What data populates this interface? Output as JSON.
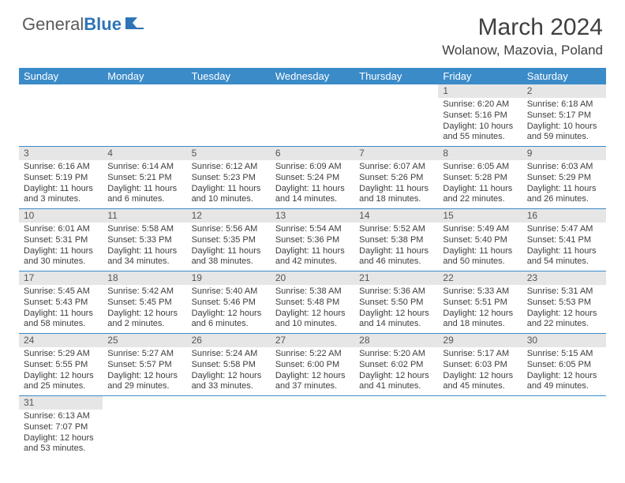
{
  "logo": {
    "general": "General",
    "blue": "Blue"
  },
  "title": "March 2024",
  "location": "Wolanow, Mazovia, Poland",
  "colors": {
    "header_bg": "#3b8bc9",
    "header_text": "#ffffff",
    "daynum_bg": "#e6e6e6",
    "border": "#3b8bc9"
  },
  "day_names": [
    "Sunday",
    "Monday",
    "Tuesday",
    "Wednesday",
    "Thursday",
    "Friday",
    "Saturday"
  ],
  "weeks": [
    [
      {
        "empty": true
      },
      {
        "empty": true
      },
      {
        "empty": true
      },
      {
        "empty": true
      },
      {
        "empty": true
      },
      {
        "num": "1",
        "sunrise": "Sunrise: 6:20 AM",
        "sunset": "Sunset: 5:16 PM",
        "daylight1": "Daylight: 10 hours",
        "daylight2": "and 55 minutes."
      },
      {
        "num": "2",
        "sunrise": "Sunrise: 6:18 AM",
        "sunset": "Sunset: 5:17 PM",
        "daylight1": "Daylight: 10 hours",
        "daylight2": "and 59 minutes."
      }
    ],
    [
      {
        "num": "3",
        "sunrise": "Sunrise: 6:16 AM",
        "sunset": "Sunset: 5:19 PM",
        "daylight1": "Daylight: 11 hours",
        "daylight2": "and 3 minutes."
      },
      {
        "num": "4",
        "sunrise": "Sunrise: 6:14 AM",
        "sunset": "Sunset: 5:21 PM",
        "daylight1": "Daylight: 11 hours",
        "daylight2": "and 6 minutes."
      },
      {
        "num": "5",
        "sunrise": "Sunrise: 6:12 AM",
        "sunset": "Sunset: 5:23 PM",
        "daylight1": "Daylight: 11 hours",
        "daylight2": "and 10 minutes."
      },
      {
        "num": "6",
        "sunrise": "Sunrise: 6:09 AM",
        "sunset": "Sunset: 5:24 PM",
        "daylight1": "Daylight: 11 hours",
        "daylight2": "and 14 minutes."
      },
      {
        "num": "7",
        "sunrise": "Sunrise: 6:07 AM",
        "sunset": "Sunset: 5:26 PM",
        "daylight1": "Daylight: 11 hours",
        "daylight2": "and 18 minutes."
      },
      {
        "num": "8",
        "sunrise": "Sunrise: 6:05 AM",
        "sunset": "Sunset: 5:28 PM",
        "daylight1": "Daylight: 11 hours",
        "daylight2": "and 22 minutes."
      },
      {
        "num": "9",
        "sunrise": "Sunrise: 6:03 AM",
        "sunset": "Sunset: 5:29 PM",
        "daylight1": "Daylight: 11 hours",
        "daylight2": "and 26 minutes."
      }
    ],
    [
      {
        "num": "10",
        "sunrise": "Sunrise: 6:01 AM",
        "sunset": "Sunset: 5:31 PM",
        "daylight1": "Daylight: 11 hours",
        "daylight2": "and 30 minutes."
      },
      {
        "num": "11",
        "sunrise": "Sunrise: 5:58 AM",
        "sunset": "Sunset: 5:33 PM",
        "daylight1": "Daylight: 11 hours",
        "daylight2": "and 34 minutes."
      },
      {
        "num": "12",
        "sunrise": "Sunrise: 5:56 AM",
        "sunset": "Sunset: 5:35 PM",
        "daylight1": "Daylight: 11 hours",
        "daylight2": "and 38 minutes."
      },
      {
        "num": "13",
        "sunrise": "Sunrise: 5:54 AM",
        "sunset": "Sunset: 5:36 PM",
        "daylight1": "Daylight: 11 hours",
        "daylight2": "and 42 minutes."
      },
      {
        "num": "14",
        "sunrise": "Sunrise: 5:52 AM",
        "sunset": "Sunset: 5:38 PM",
        "daylight1": "Daylight: 11 hours",
        "daylight2": "and 46 minutes."
      },
      {
        "num": "15",
        "sunrise": "Sunrise: 5:49 AM",
        "sunset": "Sunset: 5:40 PM",
        "daylight1": "Daylight: 11 hours",
        "daylight2": "and 50 minutes."
      },
      {
        "num": "16",
        "sunrise": "Sunrise: 5:47 AM",
        "sunset": "Sunset: 5:41 PM",
        "daylight1": "Daylight: 11 hours",
        "daylight2": "and 54 minutes."
      }
    ],
    [
      {
        "num": "17",
        "sunrise": "Sunrise: 5:45 AM",
        "sunset": "Sunset: 5:43 PM",
        "daylight1": "Daylight: 11 hours",
        "daylight2": "and 58 minutes."
      },
      {
        "num": "18",
        "sunrise": "Sunrise: 5:42 AM",
        "sunset": "Sunset: 5:45 PM",
        "daylight1": "Daylight: 12 hours",
        "daylight2": "and 2 minutes."
      },
      {
        "num": "19",
        "sunrise": "Sunrise: 5:40 AM",
        "sunset": "Sunset: 5:46 PM",
        "daylight1": "Daylight: 12 hours",
        "daylight2": "and 6 minutes."
      },
      {
        "num": "20",
        "sunrise": "Sunrise: 5:38 AM",
        "sunset": "Sunset: 5:48 PM",
        "daylight1": "Daylight: 12 hours",
        "daylight2": "and 10 minutes."
      },
      {
        "num": "21",
        "sunrise": "Sunrise: 5:36 AM",
        "sunset": "Sunset: 5:50 PM",
        "daylight1": "Daylight: 12 hours",
        "daylight2": "and 14 minutes."
      },
      {
        "num": "22",
        "sunrise": "Sunrise: 5:33 AM",
        "sunset": "Sunset: 5:51 PM",
        "daylight1": "Daylight: 12 hours",
        "daylight2": "and 18 minutes."
      },
      {
        "num": "23",
        "sunrise": "Sunrise: 5:31 AM",
        "sunset": "Sunset: 5:53 PM",
        "daylight1": "Daylight: 12 hours",
        "daylight2": "and 22 minutes."
      }
    ],
    [
      {
        "num": "24",
        "sunrise": "Sunrise: 5:29 AM",
        "sunset": "Sunset: 5:55 PM",
        "daylight1": "Daylight: 12 hours",
        "daylight2": "and 25 minutes."
      },
      {
        "num": "25",
        "sunrise": "Sunrise: 5:27 AM",
        "sunset": "Sunset: 5:57 PM",
        "daylight1": "Daylight: 12 hours",
        "daylight2": "and 29 minutes."
      },
      {
        "num": "26",
        "sunrise": "Sunrise: 5:24 AM",
        "sunset": "Sunset: 5:58 PM",
        "daylight1": "Daylight: 12 hours",
        "daylight2": "and 33 minutes."
      },
      {
        "num": "27",
        "sunrise": "Sunrise: 5:22 AM",
        "sunset": "Sunset: 6:00 PM",
        "daylight1": "Daylight: 12 hours",
        "daylight2": "and 37 minutes."
      },
      {
        "num": "28",
        "sunrise": "Sunrise: 5:20 AM",
        "sunset": "Sunset: 6:02 PM",
        "daylight1": "Daylight: 12 hours",
        "daylight2": "and 41 minutes."
      },
      {
        "num": "29",
        "sunrise": "Sunrise: 5:17 AM",
        "sunset": "Sunset: 6:03 PM",
        "daylight1": "Daylight: 12 hours",
        "daylight2": "and 45 minutes."
      },
      {
        "num": "30",
        "sunrise": "Sunrise: 5:15 AM",
        "sunset": "Sunset: 6:05 PM",
        "daylight1": "Daylight: 12 hours",
        "daylight2": "and 49 minutes."
      }
    ],
    [
      {
        "num": "31",
        "sunrise": "Sunrise: 6:13 AM",
        "sunset": "Sunset: 7:07 PM",
        "daylight1": "Daylight: 12 hours",
        "daylight2": "and 53 minutes."
      },
      {
        "empty": true
      },
      {
        "empty": true
      },
      {
        "empty": true
      },
      {
        "empty": true
      },
      {
        "empty": true
      },
      {
        "empty": true
      }
    ]
  ]
}
